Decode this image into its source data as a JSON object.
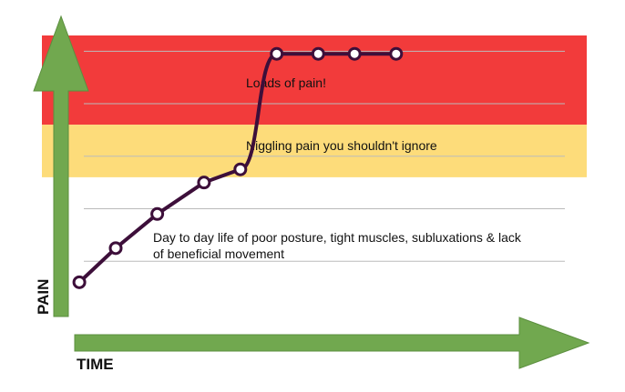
{
  "chart_data": {
    "type": "line",
    "title": "",
    "xlabel": "TIME",
    "ylabel": "PAIN",
    "grid": true,
    "legend": "none",
    "zones": [
      {
        "name": "red",
        "from": 3.6,
        "to": 5.3,
        "color": "#f23b3b",
        "label": "Loads of pain!"
      },
      {
        "name": "yellow",
        "from": 2.6,
        "to": 3.6,
        "color": "#fddc7a",
        "label": "Niggling pain you shouldn't ignore"
      },
      {
        "name": "white",
        "from": 0,
        "to": 2.6,
        "color": "#ffffff",
        "label": "Day to day life of poor posture, tight muscles, subluxations & lack of beneficial movement"
      }
    ],
    "xlim": [
      0,
      10
    ],
    "ylim": [
      0,
      5.3
    ],
    "gridlines": [
      1,
      2,
      3,
      4,
      5
    ],
    "series": [
      {
        "color": "#3d0f3a",
        "x": [
          0.3,
          1.0,
          1.8,
          2.7,
          3.4,
          4.1,
          4.9,
          5.6,
          6.4
        ],
        "y": [
          0.6,
          1.25,
          1.9,
          2.5,
          2.75,
          4.95,
          4.95,
          4.95,
          4.95
        ]
      }
    ],
    "colors": {
      "arrow": "#71a84f",
      "arrow_edge": "#5c8f3f",
      "line": "#3d0f3a",
      "marker_fill": "#ffffff",
      "grid": "#bbbbbb"
    }
  }
}
